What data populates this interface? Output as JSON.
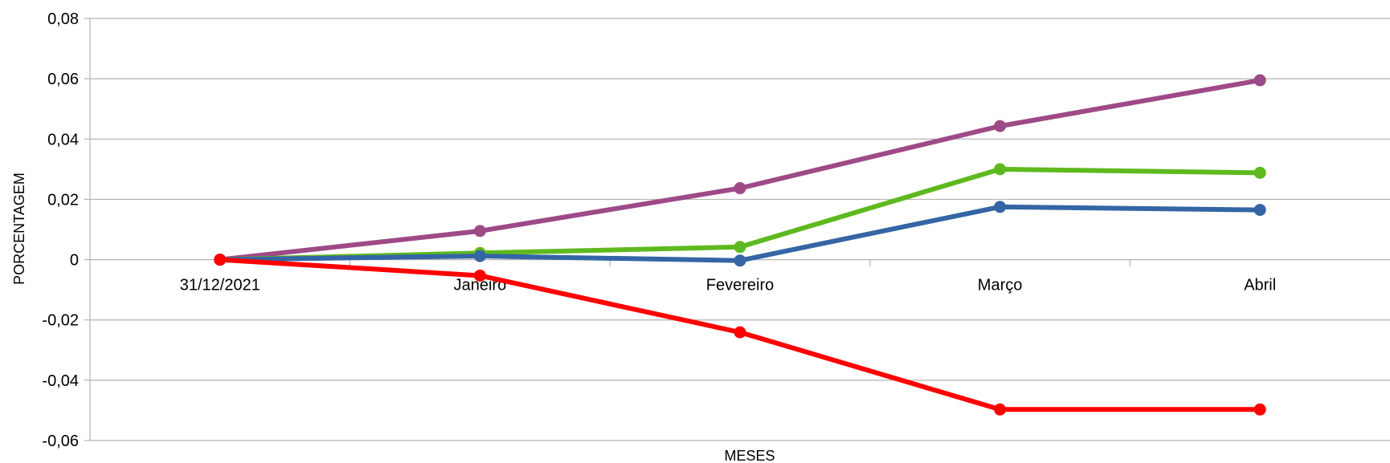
{
  "chart_data": {
    "type": "line",
    "title": "",
    "xlabel": "MESES",
    "ylabel": "PORCENTAGEM",
    "categories": [
      "31/12/2021",
      "Janeiro",
      "Fevereiro",
      "Março",
      "Abril"
    ],
    "ylim": [
      -0.06,
      0.08
    ],
    "yticks": [
      -0.06,
      -0.04,
      -0.02,
      0,
      0.02,
      0.04,
      0.06,
      0.08
    ],
    "ytick_labels": [
      "-0,06",
      "-0,04",
      "-0,02",
      "0",
      "0,02",
      "0,04",
      "0,06",
      "0,08"
    ],
    "grid": true,
    "legend": "none",
    "series": [
      {
        "color": "#9e4a86",
        "values": [
          0,
          0.0095,
          0.0237,
          0.0443,
          0.0595
        ]
      },
      {
        "color": "#5eb91e",
        "values": [
          0,
          0.0022,
          0.0042,
          0.03,
          0.0288
        ]
      },
      {
        "color": "#3465a4",
        "values": [
          0,
          0.0012,
          -0.0003,
          0.0175,
          0.0165
        ]
      },
      {
        "color": "#ff0000",
        "values": [
          0,
          -0.0053,
          -0.0241,
          -0.0497,
          -0.0497
        ]
      }
    ]
  }
}
